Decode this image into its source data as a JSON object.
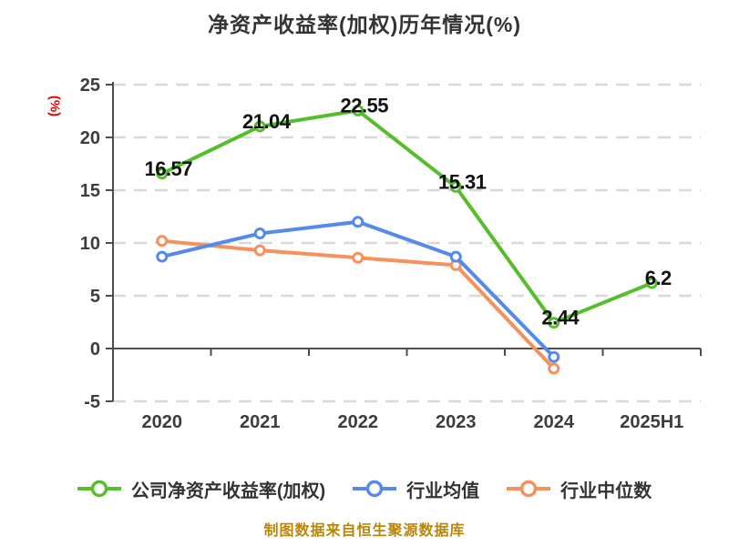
{
  "title": "净资产收益率(加权)历年情况(%)",
  "y_axis_name": "(%)",
  "footer": "制图数据来自恒生聚源数据库",
  "colors": {
    "company": "#56be2c",
    "industry_avg": "#5689ec",
    "industry_median": "#f6915c",
    "title_text": "#333333",
    "axis_line": "#4d4d4d",
    "tick_label": "#3d3d3d",
    "gridline": "#d9d9d9",
    "value_label": "#111111",
    "y_axis_name": "#e60000",
    "footer_text": "#b8860b",
    "background": "#ffffff",
    "marker_fill": "#ffffff"
  },
  "chart_data": {
    "type": "line",
    "title": "净资产收益率(加权)历年情况(%)",
    "xlabel": "",
    "ylabel": "(%)",
    "categories": [
      "2020",
      "2021",
      "2022",
      "2023",
      "2024",
      "2025H1"
    ],
    "series": [
      {
        "name": "公司净资产收益率(加权)",
        "color_key": "company",
        "values": [
          16.57,
          21.04,
          22.55,
          15.31,
          2.44,
          6.2
        ],
        "labels": [
          "16.57",
          "21.04",
          "22.55",
          "15.31",
          "2.44",
          "6.2"
        ],
        "show_labels": true
      },
      {
        "name": "行业均值",
        "color_key": "industry_avg",
        "values": [
          8.7,
          10.9,
          12.0,
          8.7,
          -0.8,
          null
        ],
        "show_labels": false
      },
      {
        "name": "行业中位数",
        "color_key": "industry_median",
        "values": [
          10.2,
          9.3,
          8.6,
          7.9,
          -1.9,
          null
        ],
        "show_labels": false
      }
    ],
    "ylim": [
      -5,
      25
    ],
    "yticks": [
      25,
      20,
      15,
      10,
      5,
      0,
      -5
    ],
    "grid": "horizontal-dashed",
    "legend_position": "bottom"
  }
}
